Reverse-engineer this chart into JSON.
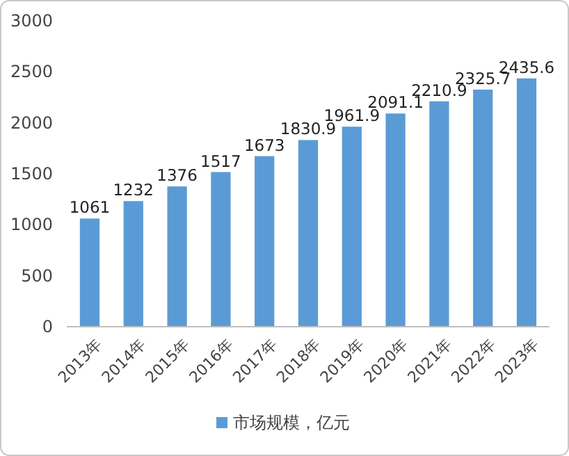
{
  "chart_data": {
    "type": "bar",
    "categories": [
      "2013年",
      "2014年",
      "2015年",
      "2016年",
      "2017年",
      "2018年",
      "2019年",
      "2020年",
      "2021年",
      "2022年",
      "2023年"
    ],
    "series": [
      {
        "name": "市场规模，亿元",
        "color": "#5b9bd5",
        "values": [
          1061,
          1232,
          1376,
          1517,
          1673,
          1830.9,
          1961.9,
          2091.1,
          2210.9,
          2325.7,
          2435.6
        ]
      }
    ],
    "ylim": [
      0,
      3000
    ],
    "yticks": [
      0,
      500,
      1000,
      1500,
      2000,
      2500,
      3000
    ],
    "data_labels": true,
    "legend": "bottom"
  }
}
